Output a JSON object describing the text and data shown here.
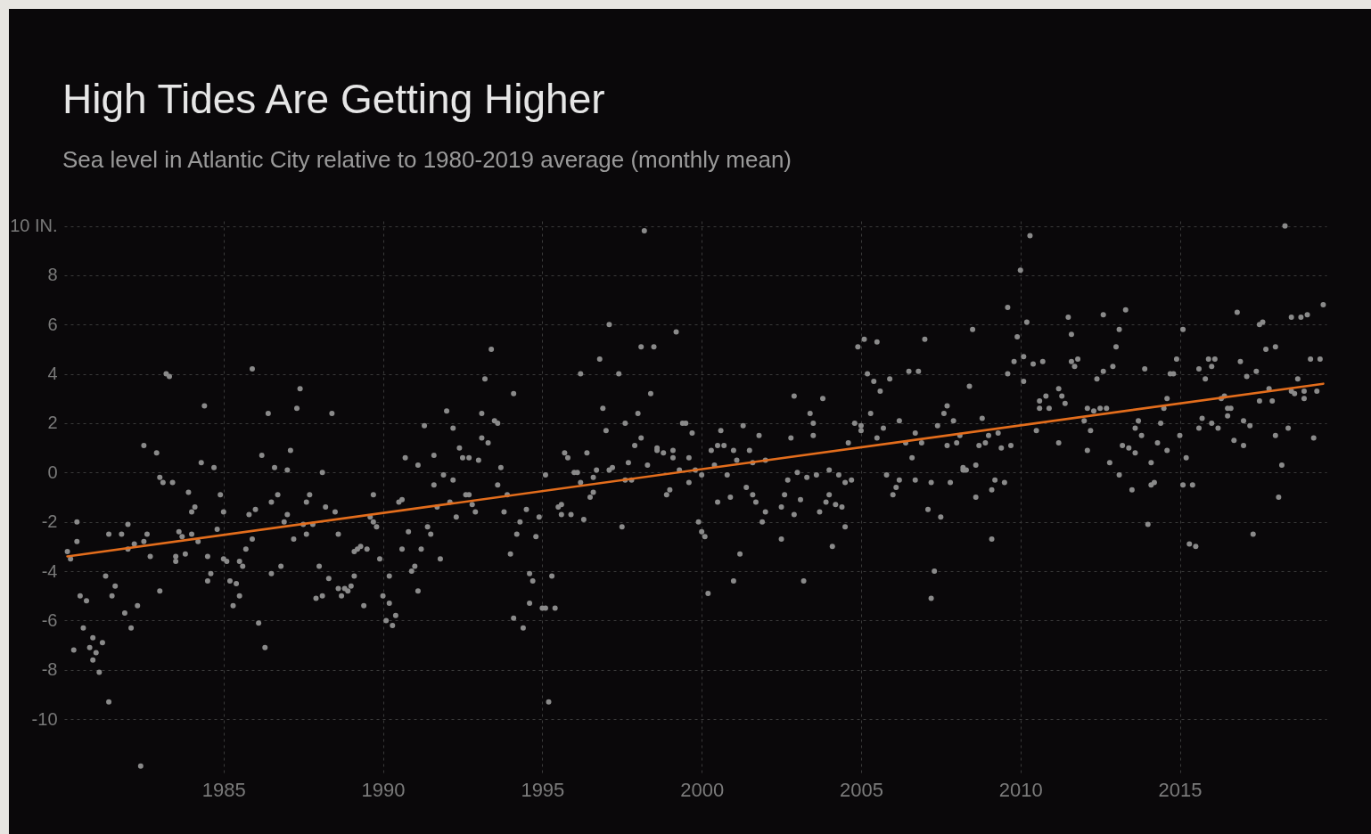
{
  "chart_data": {
    "type": "scatter",
    "title": "High Tides Are Getting Higher",
    "subtitle": "Sea level in Atlantic City relative to 1980-2019 average (monthly mean)",
    "xlim": [
      1980,
      2019.6
    ],
    "xticks": [
      1985,
      1990,
      1995,
      2000,
      2005,
      2010,
      2015
    ],
    "ylim": [
      -12.2,
      10.2
    ],
    "yticks": [
      -10,
      -8,
      -6,
      -4,
      -2,
      0,
      2,
      4,
      6,
      8,
      {
        "value": 10,
        "label": "10 IN."
      }
    ],
    "grid": true,
    "marker": "circle",
    "series": [
      {
        "color": "#8a8a8a",
        "x": [
          1980.1,
          1980.2,
          1980.3,
          1980.4,
          1980.4,
          1980.5,
          1980.6,
          1980.7,
          1980.8,
          1980.9,
          1980.9,
          1981.0,
          1981.1,
          1981.2,
          1981.3,
          1981.4,
          1981.4,
          1981.5,
          1981.6,
          1981.8,
          1981.9,
          1982.0,
          1982.0,
          1982.1,
          1982.2,
          1982.3,
          1982.4,
          1982.5,
          1982.5,
          1982.6,
          1982.7,
          1982.9,
          1983.0,
          1983.0,
          1983.1,
          1983.2,
          1983.3,
          1983.4,
          1983.5,
          1983.5,
          1983.6,
          1983.7,
          1983.8,
          1983.9,
          1984.0,
          1984.0,
          1984.1,
          1984.2,
          1984.3,
          1984.4,
          1984.5,
          1984.5,
          1984.6,
          1984.7,
          1984.8,
          1984.9,
          1985.0,
          1985.0,
          1985.1,
          1985.2,
          1985.3,
          1985.4,
          1985.5,
          1985.5,
          1985.6,
          1985.7,
          1985.8,
          1985.9,
          1985.9,
          1986.0,
          1986.1,
          1986.2,
          1986.3,
          1986.4,
          1986.5,
          1986.5,
          1986.6,
          1986.7,
          1986.8,
          1986.9,
          1987.0,
          1987.0,
          1987.1,
          1987.2,
          1987.3,
          1987.4,
          1987.5,
          1987.6,
          1987.6,
          1987.7,
          1987.8,
          1987.9,
          1988.0,
          1988.1,
          1988.1,
          1988.2,
          1988.3,
          1988.4,
          1988.5,
          1988.6,
          1988.6,
          1988.7,
          1988.8,
          1988.9,
          1989.0,
          1989.1,
          1989.1,
          1989.2,
          1989.3,
          1989.4,
          1989.5,
          1989.6,
          1989.7,
          1989.7,
          1989.8,
          1989.9,
          1990.0,
          1990.1,
          1990.2,
          1990.2,
          1990.3,
          1990.4,
          1990.5,
          1990.6,
          1990.6,
          1990.7,
          1990.8,
          1990.9,
          1991.0,
          1991.1,
          1991.1,
          1991.2,
          1991.3,
          1991.4,
          1991.5,
          1991.6,
          1991.6,
          1991.7,
          1991.8,
          1991.9,
          1992.0,
          1992.1,
          1992.2,
          1992.2,
          1992.3,
          1992.4,
          1992.5,
          1992.7,
          1992.6,
          1992.7,
          1992.8,
          1992.9,
          1993.0,
          1993.1,
          1993.1,
          1993.2,
          1993.3,
          1993.4,
          1993.5,
          1993.6,
          1993.6,
          1993.7,
          1993.8,
          1993.9,
          1994.0,
          1994.1,
          1994.1,
          1994.2,
          1994.3,
          1994.4,
          1994.5,
          1994.6,
          1994.6,
          1994.7,
          1994.8,
          1994.9,
          1995.0,
          1995.1,
          1995.1,
          1995.2,
          1995.3,
          1995.4,
          1995.5,
          1995.6,
          1995.6,
          1995.7,
          1995.8,
          1995.9,
          1996.0,
          1996.1,
          1996.2,
          1996.2,
          1996.3,
          1996.4,
          1996.5,
          1996.6,
          1996.6,
          1996.7,
          1996.8,
          1996.9,
          1997.0,
          1997.1,
          1997.1,
          1997.2,
          1997.4,
          1997.5,
          1997.6,
          1997.6,
          1997.7,
          1997.8,
          1997.9,
          1998.0,
          1998.1,
          1998.1,
          1998.2,
          1998.3,
          1998.4,
          1998.5,
          1998.6,
          1998.6,
          1998.8,
          1998.9,
          1999.0,
          1999.1,
          1999.1,
          1999.2,
          1999.3,
          1999.4,
          1999.5,
          1999.6,
          1999.6,
          1999.7,
          1999.8,
          1999.9,
          2000.0,
          2000.0,
          2000.1,
          2000.2,
          2000.3,
          2000.4,
          2000.5,
          2000.5,
          2000.6,
          2000.7,
          2000.8,
          2000.9,
          2001.0,
          2001.0,
          2001.1,
          2001.2,
          2001.3,
          2001.4,
          2001.5,
          2001.6,
          2001.6,
          2001.7,
          2001.8,
          2001.9,
          2002.0,
          2002.0,
          2002.5,
          2002.5,
          2002.6,
          2002.7,
          2002.8,
          2002.9,
          2002.9,
          2003.0,
          2003.1,
          2003.2,
          2003.3,
          2003.4,
          2003.5,
          2003.5,
          2003.6,
          2003.7,
          2003.8,
          2003.9,
          2004.0,
          2004.0,
          2004.1,
          2004.2,
          2004.3,
          2004.4,
          2004.5,
          2004.5,
          2004.6,
          2004.7,
          2004.8,
          2004.9,
          2005.0,
          2005.0,
          2005.1,
          2005.2,
          2005.3,
          2005.4,
          2005.5,
          2005.5,
          2005.6,
          2005.7,
          2005.8,
          2005.9,
          2006.0,
          2006.1,
          2006.2,
          2006.2,
          2006.4,
          2006.5,
          2006.6,
          2006.7,
          2006.7,
          2006.8,
          2006.9,
          2007.0,
          2007.1,
          2007.2,
          2007.2,
          2007.3,
          2007.4,
          2007.5,
          2007.6,
          2007.7,
          2007.7,
          2007.8,
          2007.9,
          2008.0,
          2008.1,
          2008.2,
          2008.2,
          2008.3,
          2008.4,
          2008.5,
          2008.6,
          2008.6,
          2008.7,
          2008.8,
          2008.9,
          2009.0,
          2009.1,
          2009.1,
          2009.2,
          2009.3,
          2009.4,
          2009.5,
          2009.6,
          2009.6,
          2009.7,
          2009.8,
          2009.9,
          2010.0,
          2010.1,
          2010.1,
          2010.2,
          2010.3,
          2010.4,
          2010.5,
          2010.6,
          2010.6,
          2010.7,
          2010.8,
          2010.9,
          2011.2,
          2011.2,
          2011.3,
          2011.4,
          2011.5,
          2011.6,
          2011.6,
          2011.7,
          2011.8,
          2012.0,
          2012.1,
          2012.1,
          2012.2,
          2012.3,
          2012.4,
          2012.5,
          2012.6,
          2012.6,
          2012.7,
          2012.8,
          2012.9,
          2013.0,
          2013.1,
          2013.1,
          2013.2,
          2013.3,
          2013.4,
          2013.5,
          2013.6,
          2013.6,
          2013.7,
          2013.8,
          2013.9,
          2014.0,
          2014.1,
          2014.1,
          2014.2,
          2014.3,
          2014.4,
          2014.5,
          2014.6,
          2014.6,
          2014.7,
          2014.8,
          2014.9,
          2015.0,
          2015.1,
          2015.1,
          2015.2,
          2015.3,
          2015.4,
          2015.5,
          2015.6,
          2015.6,
          2015.7,
          2015.8,
          2015.9,
          2016.0,
          2016.0,
          2016.1,
          2016.2,
          2016.3,
          2016.4,
          2016.5,
          2016.5,
          2016.6,
          2016.7,
          2016.8,
          2016.9,
          2017.0,
          2017.0,
          2017.1,
          2017.2,
          2017.3,
          2017.4,
          2017.5,
          2017.5,
          2017.6,
          2017.7,
          2017.8,
          2017.9,
          2018.0,
          2018.0,
          2018.1,
          2018.2,
          2018.3,
          2018.4,
          2018.5,
          2018.5,
          2018.6,
          2018.7,
          2018.8,
          2018.9,
          2018.9,
          2019.0,
          2019.1,
          2019.2,
          2019.3,
          2019.4,
          2019.5
        ],
        "values": [
          -3.2,
          -3.5,
          -7.2,
          -2.8,
          -2.0,
          -5.0,
          -6.3,
          -5.2,
          -7.1,
          -7.6,
          -6.7,
          -7.3,
          -8.1,
          -6.9,
          -4.2,
          -9.3,
          -2.5,
          -5.0,
          -4.6,
          -2.5,
          -5.7,
          -2.1,
          -3.1,
          -6.3,
          -2.9,
          -5.4,
          -11.9,
          -2.8,
          1.1,
          -2.5,
          -3.4,
          0.8,
          -4.8,
          -0.2,
          -0.4,
          4.0,
          3.9,
          -0.4,
          -3.6,
          -3.4,
          -2.4,
          -2.6,
          -3.3,
          -0.8,
          -1.6,
          -2.5,
          -1.4,
          -2.8,
          0.4,
          2.7,
          -4.4,
          -3.4,
          -4.1,
          0.2,
          -2.3,
          -0.9,
          -1.6,
          -3.5,
          -3.6,
          -4.4,
          -5.4,
          -4.5,
          -3.6,
          -5.0,
          -3.8,
          -3.1,
          -1.7,
          -2.7,
          4.2,
          -1.5,
          -6.1,
          0.7,
          -7.1,
          2.4,
          -1.2,
          -4.1,
          0.2,
          -0.9,
          -3.8,
          -2.0,
          -1.7,
          0.1,
          0.9,
          -2.7,
          2.6,
          3.4,
          -2.1,
          -2.5,
          -1.2,
          -0.9,
          -2.1,
          -5.1,
          -3.8,
          0.0,
          -5.0,
          -1.4,
          -4.3,
          2.4,
          -1.6,
          -2.5,
          -4.7,
          -5.0,
          -4.7,
          -4.8,
          -4.6,
          -4.2,
          -3.2,
          -3.1,
          -3.0,
          -5.4,
          -3.1,
          -1.8,
          -2.0,
          -0.9,
          -2.2,
          -3.5,
          -5.0,
          -6.0,
          -5.3,
          -4.2,
          -6.2,
          -5.8,
          -1.2,
          -3.1,
          -1.1,
          0.6,
          -2.4,
          -4.0,
          -3.8,
          -4.8,
          0.3,
          -3.1,
          1.9,
          -2.2,
          -2.5,
          -0.5,
          0.7,
          -1.4,
          -3.5,
          -0.1,
          2.5,
          -1.2,
          -0.3,
          1.8,
          -1.8,
          1.0,
          0.6,
          0.6,
          -0.9,
          -0.9,
          -1.3,
          -1.6,
          0.5,
          2.4,
          1.4,
          3.8,
          1.2,
          5.0,
          2.1,
          -0.5,
          2.0,
          0.2,
          -1.6,
          -0.9,
          -3.3,
          3.2,
          -5.9,
          -2.5,
          -2.0,
          -6.3,
          -1.5,
          -5.3,
          -4.1,
          -4.4,
          -2.6,
          -1.8,
          -5.5,
          -0.1,
          -5.5,
          -9.3,
          -4.2,
          -5.5,
          -1.4,
          -1.7,
          -1.3,
          0.8,
          0.6,
          -1.7,
          0.0,
          0.0,
          4.0,
          -0.4,
          -1.9,
          0.8,
          -1.0,
          -0.2,
          -0.8,
          0.1,
          4.6,
          2.6,
          1.7,
          6.0,
          0.1,
          0.2,
          4.0,
          -2.2,
          2.0,
          -0.3,
          0.4,
          -0.3,
          1.1,
          2.4,
          1.4,
          5.1,
          9.8,
          0.3,
          3.2,
          5.1,
          1.0,
          0.9,
          0.8,
          -0.9,
          -0.7,
          0.9,
          0.6,
          5.7,
          0.1,
          2.0,
          2.0,
          -0.4,
          0.6,
          1.6,
          0.1,
          -2.0,
          -2.4,
          -0.1,
          -2.6,
          -4.9,
          0.9,
          0.3,
          1.1,
          -1.2,
          1.7,
          1.1,
          -0.1,
          -1.0,
          0.9,
          -4.4,
          0.5,
          -3.3,
          1.9,
          -0.6,
          0.9,
          -0.9,
          0.4,
          -1.2,
          1.5,
          -2.0,
          -1.6,
          0.5,
          -2.7,
          -1.4,
          -0.9,
          -0.3,
          1.4,
          3.1,
          -1.7,
          0.0,
          -1.1,
          -4.4,
          -0.2,
          2.4,
          1.5,
          2.0,
          -0.1,
          -1.6,
          3.0,
          -1.2,
          -0.9,
          0.1,
          -3.0,
          -1.3,
          -0.1,
          -1.4,
          -2.2,
          -0.4,
          1.2,
          -0.3,
          2.0,
          5.1,
          1.9,
          1.7,
          5.4,
          4.0,
          2.4,
          3.7,
          5.3,
          1.4,
          3.3,
          1.8,
          -0.1,
          3.8,
          -0.9,
          -0.6,
          2.1,
          -0.3,
          1.2,
          4.1,
          0.6,
          -0.3,
          1.6,
          4.1,
          1.2,
          5.4,
          -1.5,
          -0.4,
          -5.1,
          -4.0,
          1.9,
          -1.8,
          2.4,
          1.1,
          2.7,
          -0.4,
          2.1,
          1.2,
          1.5,
          0.1,
          0.2,
          0.1,
          3.5,
          5.8,
          0.3,
          -1.0,
          1.1,
          2.2,
          1.2,
          1.5,
          -2.7,
          -0.7,
          -0.3,
          1.6,
          1.0,
          -0.4,
          6.7,
          4.0,
          1.1,
          4.5,
          5.5,
          8.2,
          3.7,
          4.7,
          6.1,
          9.6,
          4.4,
          1.7,
          2.9,
          2.6,
          4.5,
          3.1,
          2.6,
          3.4,
          1.2,
          3.1,
          2.8,
          6.3,
          5.6,
          4.5,
          4.3,
          4.6,
          2.1,
          2.6,
          0.9,
          1.7,
          2.5,
          3.8,
          2.6,
          6.4,
          4.1,
          2.6,
          0.4,
          4.3,
          5.1,
          5.8,
          -0.1,
          1.1,
          6.6,
          1.0,
          -0.7,
          0.8,
          1.8,
          2.1,
          1.5,
          4.2,
          -2.1,
          0.4,
          -0.5,
          -0.4,
          1.2,
          2.0,
          2.6,
          3.0,
          0.9,
          4.0,
          4.0,
          4.6,
          1.5,
          5.8,
          -0.5,
          0.6,
          -2.9,
          -0.5,
          -3.0,
          1.8,
          4.2,
          2.2,
          3.8,
          4.6,
          2.0,
          4.3,
          4.6,
          1.8,
          3.0,
          3.1,
          2.6,
          2.3,
          2.6,
          1.3,
          6.5,
          4.5,
          2.1,
          1.1,
          3.9,
          1.9,
          -2.5,
          4.1,
          6.0,
          2.9,
          6.1,
          5.0,
          3.4,
          2.9,
          5.1,
          1.5,
          -1.0,
          0.3,
          10.0,
          1.8,
          3.3,
          6.3,
          3.2,
          3.8,
          6.3,
          3.3,
          3.0,
          6.4,
          4.6,
          1.4,
          3.3,
          4.6,
          6.8
        ]
      },
      {
        "type": "line",
        "marker": "none",
        "color": "#e36d1c",
        "x": [
          1980.1,
          2019.5
        ],
        "values": [
          -3.4,
          3.6
        ]
      }
    ]
  }
}
